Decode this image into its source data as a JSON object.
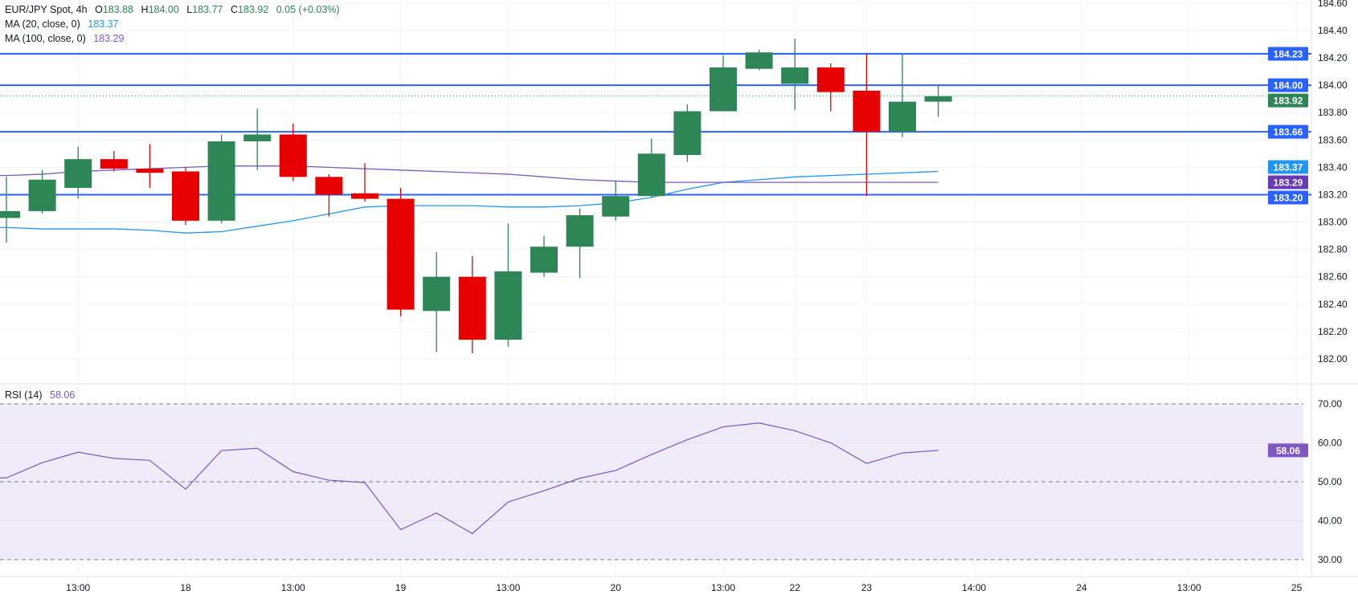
{
  "header": {
    "symbol": "EUR/JPY Spot, 4h",
    "open_label": "O",
    "open": "183.88",
    "high_label": "H",
    "high": "184.00",
    "low_label": "L",
    "low": "183.77",
    "close_label": "C",
    "close": "183.92",
    "change": "0.05 (+0.03%)"
  },
  "indicators": {
    "ma20": {
      "label": "MA (20, close, 0)",
      "value": "183.37"
    },
    "ma100": {
      "label": "MA (100, close, 0)",
      "value": "183.29"
    },
    "rsi": {
      "label": "RSI (14)",
      "value": "58.06"
    }
  },
  "colors": {
    "up": "#2e8555",
    "down": "#e60000",
    "level_line": "#2962ff",
    "ma20": "#2196f3",
    "ma100": "#7e57c2",
    "rsi": "#7e57c2",
    "rsi_band": "#efebf8"
  },
  "chart_data": [
    {
      "type": "candlestick",
      "title": "EUR/JPY Spot, 4h",
      "ylim": [
        181.9,
        184.62
      ],
      "grid": true,
      "y_ticks": [
        "184.60",
        "184.40",
        "184.20",
        "184.00",
        "183.80",
        "183.60",
        "183.40",
        "183.20",
        "183.00",
        "182.80",
        "182.60",
        "182.40",
        "182.20",
        "182.00"
      ],
      "x_tick_labels": [
        "13:00",
        "18",
        "13:00",
        "19",
        "13:00",
        "20",
        "13:00",
        "22",
        "23",
        "14:00",
        "24",
        "13:00",
        "25"
      ],
      "candles": [
        {
          "o": 183.03,
          "h": 183.33,
          "l": 182.85,
          "c": 183.08
        },
        {
          "o": 183.08,
          "h": 183.38,
          "l": 183.06,
          "c": 183.31
        },
        {
          "o": 183.25,
          "h": 183.55,
          "l": 183.17,
          "c": 183.46
        },
        {
          "o": 183.46,
          "h": 183.52,
          "l": 183.37,
          "c": 183.39
        },
        {
          "o": 183.39,
          "h": 183.57,
          "l": 183.25,
          "c": 183.36
        },
        {
          "o": 183.37,
          "h": 183.4,
          "l": 182.98,
          "c": 183.01
        },
        {
          "o": 183.01,
          "h": 183.64,
          "l": 182.99,
          "c": 183.59
        },
        {
          "o": 183.59,
          "h": 183.83,
          "l": 183.38,
          "c": 183.64
        },
        {
          "o": 183.64,
          "h": 183.72,
          "l": 183.3,
          "c": 183.33
        },
        {
          "o": 183.33,
          "h": 183.35,
          "l": 183.04,
          "c": 183.2
        },
        {
          "o": 183.21,
          "h": 183.43,
          "l": 183.15,
          "c": 183.17
        },
        {
          "o": 183.17,
          "h": 183.25,
          "l": 182.31,
          "c": 182.36
        },
        {
          "o": 182.35,
          "h": 182.78,
          "l": 182.05,
          "c": 182.6
        },
        {
          "o": 182.6,
          "h": 182.75,
          "l": 182.04,
          "c": 182.14
        },
        {
          "o": 182.14,
          "h": 182.99,
          "l": 182.09,
          "c": 182.64
        },
        {
          "o": 182.63,
          "h": 182.9,
          "l": 182.6,
          "c": 182.82
        },
        {
          "o": 182.82,
          "h": 183.1,
          "l": 182.59,
          "c": 183.05
        },
        {
          "o": 183.04,
          "h": 183.3,
          "l": 183.01,
          "c": 183.19
        },
        {
          "o": 183.19,
          "h": 183.61,
          "l": 183.18,
          "c": 183.5
        },
        {
          "o": 183.49,
          "h": 183.86,
          "l": 183.44,
          "c": 183.81
        },
        {
          "o": 183.81,
          "h": 184.22,
          "l": 183.81,
          "c": 184.13
        },
        {
          "o": 184.12,
          "h": 184.26,
          "l": 184.11,
          "c": 184.24
        },
        {
          "o": 184.01,
          "h": 184.34,
          "l": 183.82,
          "c": 184.13
        },
        {
          "o": 184.13,
          "h": 184.16,
          "l": 183.81,
          "c": 183.95
        },
        {
          "o": 183.96,
          "h": 184.23,
          "l": 183.19,
          "c": 183.66
        },
        {
          "o": 183.66,
          "h": 184.23,
          "l": 183.62,
          "c": 183.88
        },
        {
          "o": 183.88,
          "h": 184.0,
          "l": 183.77,
          "c": 183.92
        }
      ],
      "series": [
        {
          "name": "MA (20, close, 0)",
          "type": "line",
          "values": [
            182.96,
            182.95,
            182.95,
            182.95,
            182.94,
            182.92,
            182.93,
            182.97,
            183.01,
            183.06,
            183.11,
            183.12,
            183.12,
            183.12,
            183.11,
            183.11,
            183.12,
            183.14,
            183.18,
            183.24,
            183.29,
            183.31,
            183.33,
            183.34,
            183.35,
            183.36,
            183.37
          ]
        },
        {
          "name": "MA (100, close, 0)",
          "type": "line",
          "values": [
            183.34,
            183.35,
            183.37,
            183.38,
            183.39,
            183.4,
            183.41,
            183.41,
            183.41,
            183.4,
            183.39,
            183.38,
            183.37,
            183.36,
            183.35,
            183.33,
            183.31,
            183.3,
            183.29,
            183.29,
            183.29,
            183.29,
            183.29,
            183.29,
            183.29,
            183.29,
            183.29
          ]
        }
      ],
      "horizontal_levels": [
        "184.23",
        "184.00",
        "183.66",
        "183.20"
      ],
      "last_price": "183.92"
    },
    {
      "type": "line",
      "title": "RSI (14)",
      "ylim": [
        25,
        75
      ],
      "y_ticks": [
        "70.00",
        "60.00",
        "50.00",
        "40.00",
        "30.00"
      ],
      "band": [
        30,
        70
      ],
      "series": [
        {
          "name": "RSI (14)",
          "values": [
            51.0,
            54.9,
            57.6,
            56.0,
            55.5,
            48.1,
            58.0,
            58.6,
            52.6,
            50.4,
            49.8,
            37.7,
            42.0,
            36.7,
            44.8,
            47.7,
            50.9,
            52.9,
            57.0,
            60.8,
            64.1,
            65.1,
            63.1,
            60.0,
            54.7,
            57.4,
            58.06
          ]
        }
      ],
      "last_value": "58.06"
    }
  ]
}
